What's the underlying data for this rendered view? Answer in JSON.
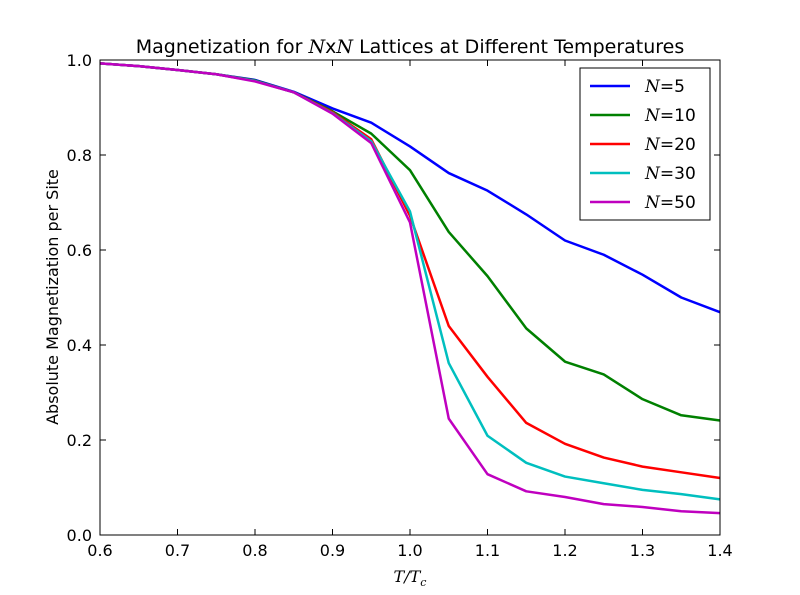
{
  "chart_data": {
    "type": "line",
    "title_prefix": "Magnetization for ",
    "title_math": "N",
    "title_mid": "x",
    "title_math2": "N",
    "title_suffix": " Lattices at Different Temperatures",
    "xlabel_main": "T",
    "xlabel_slash": "/",
    "xlabel_sub_main": "T",
    "xlabel_sub": "c",
    "ylabel": "Absolute Magnetization per Site",
    "xlim": [
      0.6,
      1.4
    ],
    "ylim": [
      0.0,
      1.0
    ],
    "xticks": [
      "0.6",
      "0.7",
      "0.8",
      "0.9",
      "1.0",
      "1.1",
      "1.2",
      "1.3",
      "1.4"
    ],
    "yticks": [
      "0.0",
      "0.2",
      "0.4",
      "0.6",
      "0.8",
      "1.0"
    ],
    "grid": false,
    "legend_position": "top-right",
    "x": [
      0.6,
      0.65,
      0.7,
      0.75,
      0.8,
      0.85,
      0.9,
      0.95,
      1.0,
      1.05,
      1.1,
      1.15,
      1.2,
      1.25,
      1.3,
      1.35,
      1.4
    ],
    "series": [
      {
        "legend_sym": "N",
        "legend_eq": "=",
        "legend_num": "5",
        "color": "#0000ff",
        "values": [
          0.993,
          0.987,
          0.979,
          0.97,
          0.958,
          0.933,
          0.898,
          0.868,
          0.818,
          0.762,
          0.725,
          0.675,
          0.62,
          0.59,
          0.548,
          0.5,
          0.469
        ]
      },
      {
        "legend_sym": "N",
        "legend_eq": "=",
        "legend_num": "10",
        "color": "#008000",
        "values": [
          0.993,
          0.987,
          0.979,
          0.97,
          0.957,
          0.932,
          0.892,
          0.845,
          0.768,
          0.638,
          0.545,
          0.435,
          0.365,
          0.338,
          0.286,
          0.252,
          0.241
        ]
      },
      {
        "legend_sym": "N",
        "legend_eq": "=",
        "legend_num": "20",
        "color": "#ff0000",
        "values": [
          0.993,
          0.987,
          0.979,
          0.97,
          0.956,
          0.932,
          0.89,
          0.833,
          0.672,
          0.44,
          0.333,
          0.236,
          0.192,
          0.163,
          0.144,
          0.132,
          0.12
        ]
      },
      {
        "legend_sym": "N",
        "legend_eq": "=",
        "legend_num": "30",
        "color": "#00bfbf",
        "values": [
          0.993,
          0.987,
          0.979,
          0.97,
          0.956,
          0.932,
          0.888,
          0.829,
          0.681,
          0.362,
          0.209,
          0.152,
          0.123,
          0.109,
          0.095,
          0.086,
          0.075
        ]
      },
      {
        "legend_sym": "N",
        "legend_eq": "=",
        "legend_num": "50",
        "color": "#bf00bf",
        "values": [
          0.993,
          0.987,
          0.979,
          0.97,
          0.955,
          0.932,
          0.887,
          0.825,
          0.658,
          0.245,
          0.128,
          0.092,
          0.08,
          0.065,
          0.059,
          0.05,
          0.046
        ]
      }
    ]
  }
}
